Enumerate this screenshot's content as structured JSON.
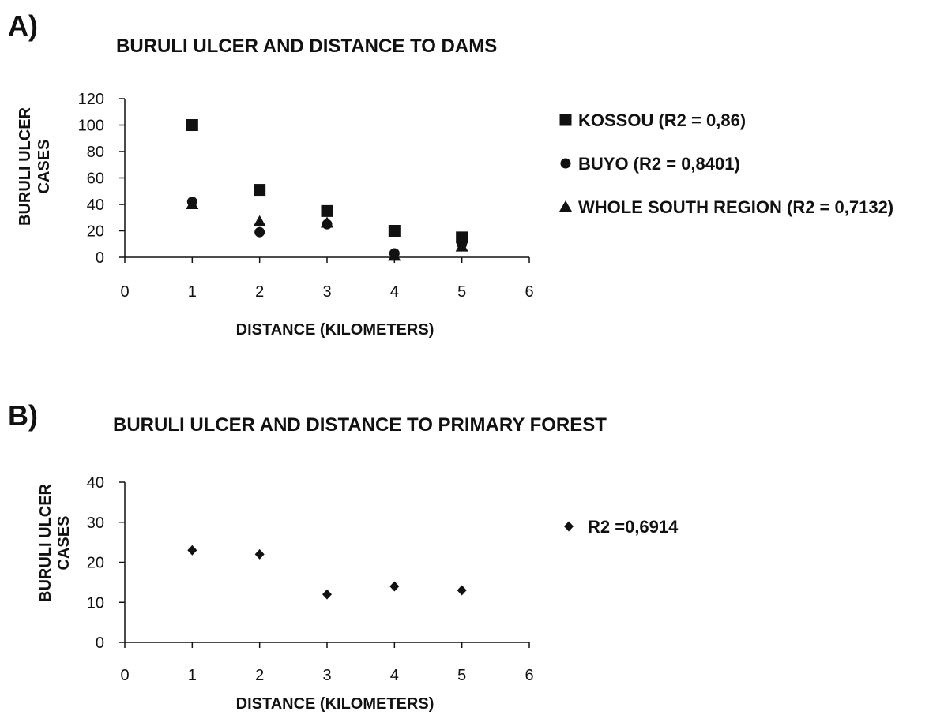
{
  "chart_data": [
    {
      "panel": "A)",
      "type": "scatter",
      "title": "BURULI ULCER AND DISTANCE TO DAMS",
      "xlabel": "DISTANCE (KILOMETERS)",
      "ylabel": [
        "BURULI ULCER",
        "CASES"
      ],
      "xlim": [
        0,
        6
      ],
      "ylim": [
        0,
        120
      ],
      "xticks": [
        0,
        1,
        2,
        3,
        4,
        5,
        6
      ],
      "yticks": [
        0,
        20,
        40,
        60,
        80,
        100,
        120
      ],
      "legend_position": "right",
      "grid": false,
      "series": [
        {
          "name": "KOSSOU (R2 = 0,86)",
          "marker": "square",
          "x": [
            1,
            2,
            3,
            4,
            5
          ],
          "y": [
            100,
            51,
            35,
            20,
            15
          ]
        },
        {
          "name": "BUYO (R2 = 0,8401)",
          "marker": "circle",
          "x": [
            1,
            2,
            3,
            4,
            5
          ],
          "y": [
            42,
            19,
            25,
            3,
            10
          ]
        },
        {
          "name": "WHOLE SOUTH REGION (R2 = 0,7132)",
          "marker": "triangle",
          "x": [
            1,
            2,
            3,
            4,
            5
          ],
          "y": [
            40,
            27,
            26,
            1,
            8
          ]
        }
      ]
    },
    {
      "panel": "B)",
      "type": "scatter",
      "title": "BURULI ULCER AND DISTANCE TO PRIMARY FOREST",
      "xlabel": "DISTANCE (KILOMETERS)",
      "ylabel": [
        "BURULI ULCER",
        "CASES"
      ],
      "xlim": [
        0,
        6
      ],
      "ylim": [
        0,
        40
      ],
      "xticks": [
        0,
        1,
        2,
        3,
        4,
        5,
        6
      ],
      "yticks": [
        0,
        10,
        20,
        30,
        40
      ],
      "legend_position": "right",
      "grid": false,
      "series": [
        {
          "name": "R2 =0,6914",
          "marker": "diamond",
          "x": [
            1,
            2,
            3,
            4,
            5
          ],
          "y": [
            23,
            22,
            12,
            14,
            13
          ]
        }
      ]
    }
  ],
  "colors": {
    "ink": "#111111",
    "background": "#ffffff"
  }
}
